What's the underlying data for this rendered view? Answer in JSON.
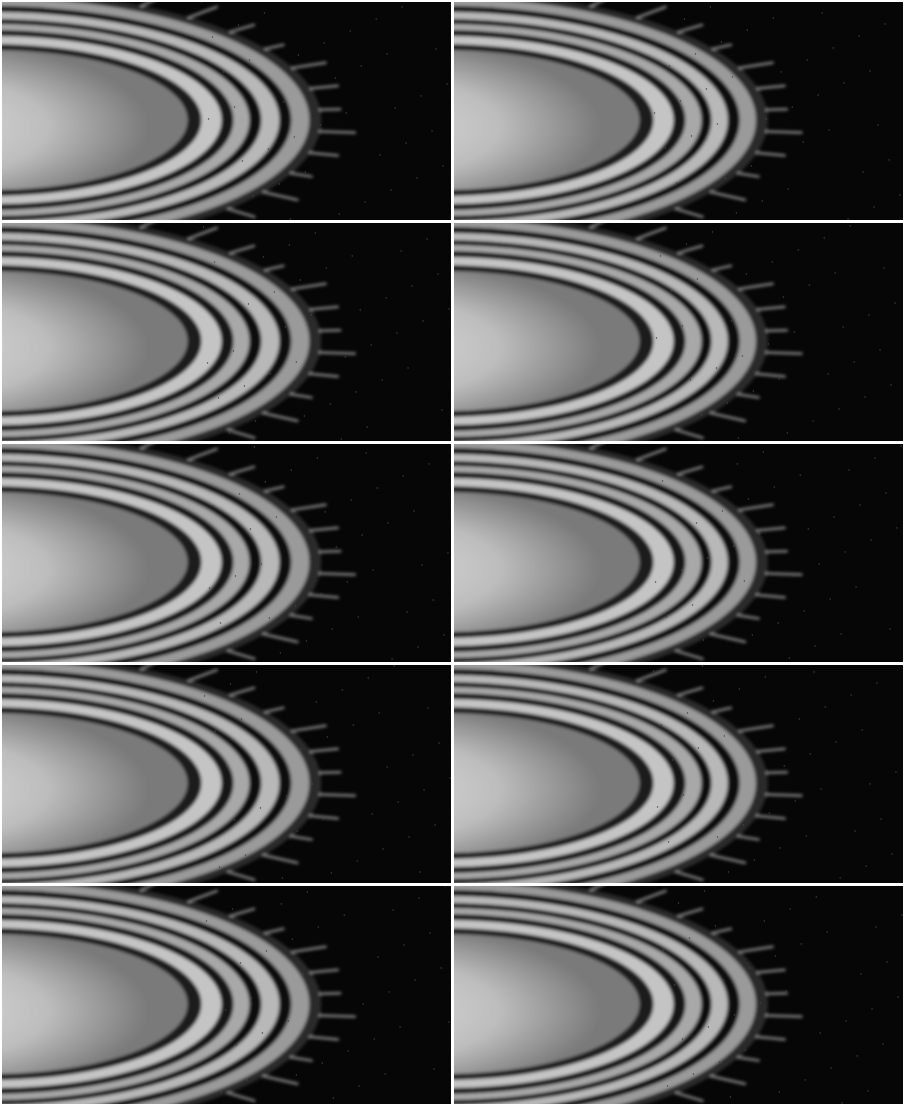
{
  "frames": [
    {
      "variant": "a"
    },
    {
      "variant": "b"
    },
    {
      "variant": "a"
    },
    {
      "variant": "b"
    },
    {
      "variant": "a"
    },
    {
      "variant": "b"
    },
    {
      "variant": "a"
    },
    {
      "variant": "b"
    },
    {
      "variant": "a"
    },
    {
      "variant": "b"
    }
  ],
  "colors": {
    "background": "#060606",
    "separator": "#ffffff",
    "core": "#d8d8d8",
    "band_light": "#c9c9c9",
    "band_dark": "#0a0a0a"
  }
}
